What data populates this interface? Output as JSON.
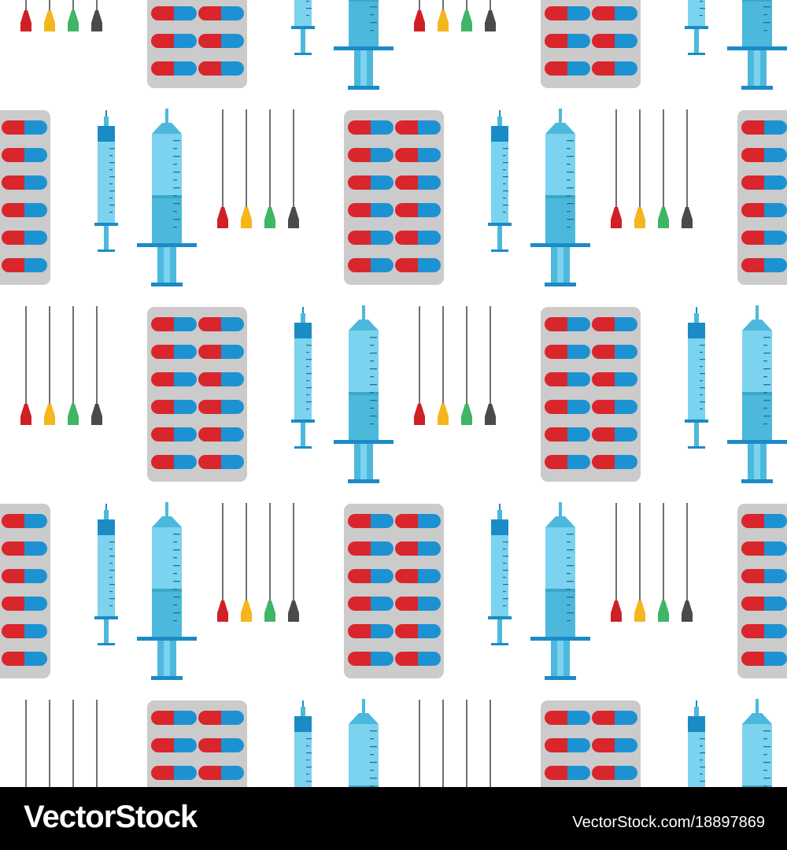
{
  "watermark": {
    "logo_text": "VectorStock",
    "image_id_text": "VectorStock.com/18897869",
    "bar_color": "#000000",
    "text_color": "#ffffff"
  },
  "pattern": {
    "background_color": "#ffffff",
    "motifs": [
      "pill-blister-pack",
      "syringe-small",
      "syringe-large",
      "needle-set"
    ],
    "colors": {
      "blister_pack": "#cbcbcb",
      "capsule_red": "#d8262c",
      "capsule_blue": "#1d92d3",
      "syringe_light": "#7bd3ef",
      "syringe_mid": "#4cb9dc",
      "syringe_dark": "#1b8bc6",
      "needle_shaft": "#333333",
      "needle_hubs": [
        "#cf2026",
        "#f5b51d",
        "#3fb566",
        "#4a4a4a"
      ]
    }
  }
}
